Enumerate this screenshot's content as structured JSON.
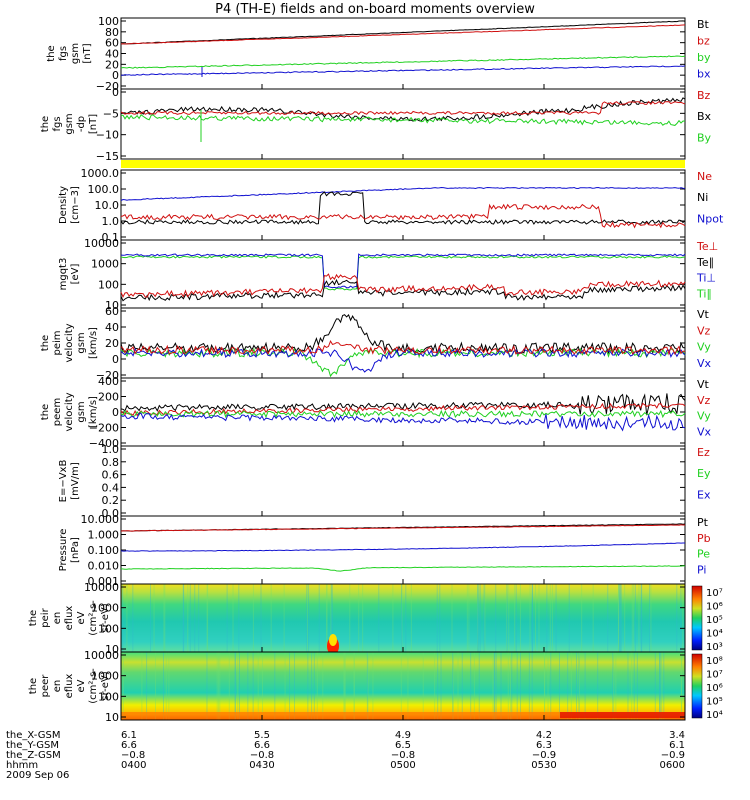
{
  "title": "P4 (TH-E) fields and on-board moments overview",
  "colors": {
    "black": "#000000",
    "red": "#d01010",
    "green": "#20d020",
    "blue": "#1010d0",
    "yellow": "#ffff00",
    "grid": "#000000"
  },
  "panels": [
    {
      "id": "fgs_gsm",
      "ylabel": [
        "the",
        "fgs",
        "gsm",
        "[nT]"
      ],
      "yticks": [
        "100",
        "80",
        "60",
        "40",
        "20",
        "0",
        "−20"
      ],
      "legend": [
        {
          "label": "Bt",
          "color": "black"
        },
        {
          "label": "bz",
          "color": "red"
        },
        {
          "label": "by",
          "color": "green"
        },
        {
          "label": "bx",
          "color": "blue"
        }
      ]
    },
    {
      "id": "fgs_gse_dp",
      "ylabel": [
        "the",
        "fgs",
        "gsm",
        "-dp",
        "[nT]"
      ],
      "yticks": [
        "0",
        "−5",
        "−10",
        "−15"
      ],
      "legend": [
        {
          "label": "Bz",
          "color": "red"
        },
        {
          "label": "Bx",
          "color": "black"
        },
        {
          "label": "By",
          "color": "green"
        }
      ]
    },
    {
      "id": "density",
      "ylabel": [
        "Density",
        "[cm−3]"
      ],
      "yticks": [
        "1000.0",
        "100.0",
        "10.0",
        "1.0",
        "0.1"
      ],
      "legend": [
        {
          "label": "Ne",
          "color": "red"
        },
        {
          "label": "Ni",
          "color": "black"
        },
        {
          "label": "Npot",
          "color": "blue"
        }
      ]
    },
    {
      "id": "temperature",
      "ylabel": [
        "mgqt3",
        "[eV]"
      ],
      "yticks": [
        "10000",
        "1000",
        "100",
        "10"
      ],
      "legend": [
        {
          "label": "Te⊥",
          "color": "red"
        },
        {
          "label": "Te∥",
          "color": "black"
        },
        {
          "label": "Ti⊥",
          "color": "blue"
        },
        {
          "label": "Ti∥",
          "color": "green"
        }
      ]
    },
    {
      "id": "peim_velocity",
      "ylabel": [
        "the",
        "peim",
        "velocity",
        "gsm",
        "[km/s]"
      ],
      "yticks": [
        "60",
        "40",
        "20",
        "0",
        "−20"
      ],
      "legend": [
        {
          "label": "Vt",
          "color": "black"
        },
        {
          "label": "Vz",
          "color": "red"
        },
        {
          "label": "Vy",
          "color": "green"
        },
        {
          "label": "Vx",
          "color": "blue"
        }
      ]
    },
    {
      "id": "peem_velocity",
      "ylabel": [
        "the",
        "peem",
        "velocity",
        "gsm",
        "[km/s]"
      ],
      "yticks": [
        "400",
        "200",
        "0",
        "−200",
        "−400"
      ],
      "legend": [
        {
          "label": "Vt",
          "color": "black"
        },
        {
          "label": "Vz",
          "color": "red"
        },
        {
          "label": "Vy",
          "color": "green"
        },
        {
          "label": "Vx",
          "color": "blue"
        }
      ]
    },
    {
      "id": "efield",
      "ylabel": [
        "E=−VxB",
        "[mV/m]"
      ],
      "yticks": [
        "1.0",
        "0.8",
        "0.6",
        "0.4",
        "0.2",
        "0.0"
      ],
      "legend": [
        {
          "label": "Ez",
          "color": "red"
        },
        {
          "label": "Ey",
          "color": "green"
        },
        {
          "label": "Ex",
          "color": "blue"
        }
      ]
    },
    {
      "id": "pressure",
      "ylabel": [
        "Pressure",
        "[nPa]"
      ],
      "yticks": [
        "10.000",
        "1.000",
        "0.100",
        "0.010",
        "0.001"
      ],
      "legend": [
        {
          "label": "Pt",
          "color": "black"
        },
        {
          "label": "Pb",
          "color": "red"
        },
        {
          "label": "Pe",
          "color": "green"
        },
        {
          "label": "Pi",
          "color": "blue"
        }
      ]
    },
    {
      "id": "peir_spec",
      "ylabel": [
        "the",
        "peir",
        "en",
        "eflux",
        "eV",
        "(cm²-s-",
        "sr-eV)"
      ],
      "yticks": [
        "10000",
        "1000",
        "100",
        "10"
      ],
      "colorbar": [
        "10⁷",
        "10⁶",
        "10⁵",
        "10⁴",
        "10³"
      ]
    },
    {
      "id": "peer_spec",
      "ylabel": [
        "the",
        "peer",
        "en",
        "eflux",
        "eV",
        "(cm²-s-",
        "sr-eV)"
      ],
      "yticks": [
        "10000",
        "1000",
        "100",
        "10"
      ],
      "colorbar": [
        "10⁸",
        "10⁷",
        "10⁶",
        "10⁵",
        "10⁴"
      ]
    }
  ],
  "footer": {
    "row_labels": [
      "the_X-GSM",
      "the_Y-GSM",
      "the_Z-GSM",
      "hhmm",
      "2009 Sep 06"
    ],
    "columns": [
      {
        "x_gsm": "6.1",
        "y_gsm": "6.6",
        "z_gsm": "−0.8",
        "hhmm": "0400"
      },
      {
        "x_gsm": "5.5",
        "y_gsm": "6.6",
        "z_gsm": "−0.8",
        "hhmm": "0430"
      },
      {
        "x_gsm": "4.9",
        "y_gsm": "6.5",
        "z_gsm": "−0.8",
        "hhmm": "0500"
      },
      {
        "x_gsm": "4.2",
        "y_gsm": "6.3",
        "z_gsm": "−0.9",
        "hhmm": "0530"
      },
      {
        "x_gsm": "3.4",
        "y_gsm": "6.1",
        "z_gsm": "−0.9",
        "hhmm": "0600"
      }
    ]
  },
  "chart_data": {
    "type": "line",
    "title": "P4 (TH-E) fields and on-board moments overview",
    "x": [
      "0400",
      "0430",
      "0500",
      "0530",
      "0600"
    ],
    "xlabel": "hhmm",
    "date": "2009 Sep 06",
    "series": [
      {
        "name": "Bt",
        "values": [
          57,
          66,
          76,
          86,
          98
        ]
      },
      {
        "name": "bz",
        "values": [
          56,
          64,
          73,
          83,
          93
        ]
      },
      {
        "name": "by",
        "values": [
          20,
          22,
          27,
          30,
          37
        ]
      },
      {
        "name": "bx",
        "values": [
          8,
          10,
          12,
          14,
          17
        ]
      },
      {
        "name": "Npot",
        "values": [
          18,
          35,
          80,
          120,
          110
        ]
      },
      {
        "name": "Ni",
        "values": [
          0.5,
          0.6,
          0.7,
          0.8,
          0.8
        ]
      },
      {
        "name": "Ne",
        "values": [
          1.5,
          1.0,
          0.8,
          4.0,
          0.4
        ]
      },
      {
        "name": "Ti∥",
        "values": [
          2500,
          2400,
          2600,
          2500,
          2600
        ]
      },
      {
        "name": "Te∥",
        "values": [
          30,
          40,
          45,
          25,
          110
        ]
      },
      {
        "name": "Pt",
        "values": [
          1.5,
          2.0,
          3.0,
          4.0,
          5.0
        ]
      },
      {
        "name": "Pi",
        "values": [
          0.12,
          0.13,
          0.15,
          0.18,
          0.25
        ]
      },
      {
        "name": "Pe",
        "values": [
          0.008,
          0.008,
          0.008,
          0.008,
          0.01
        ]
      }
    ]
  }
}
